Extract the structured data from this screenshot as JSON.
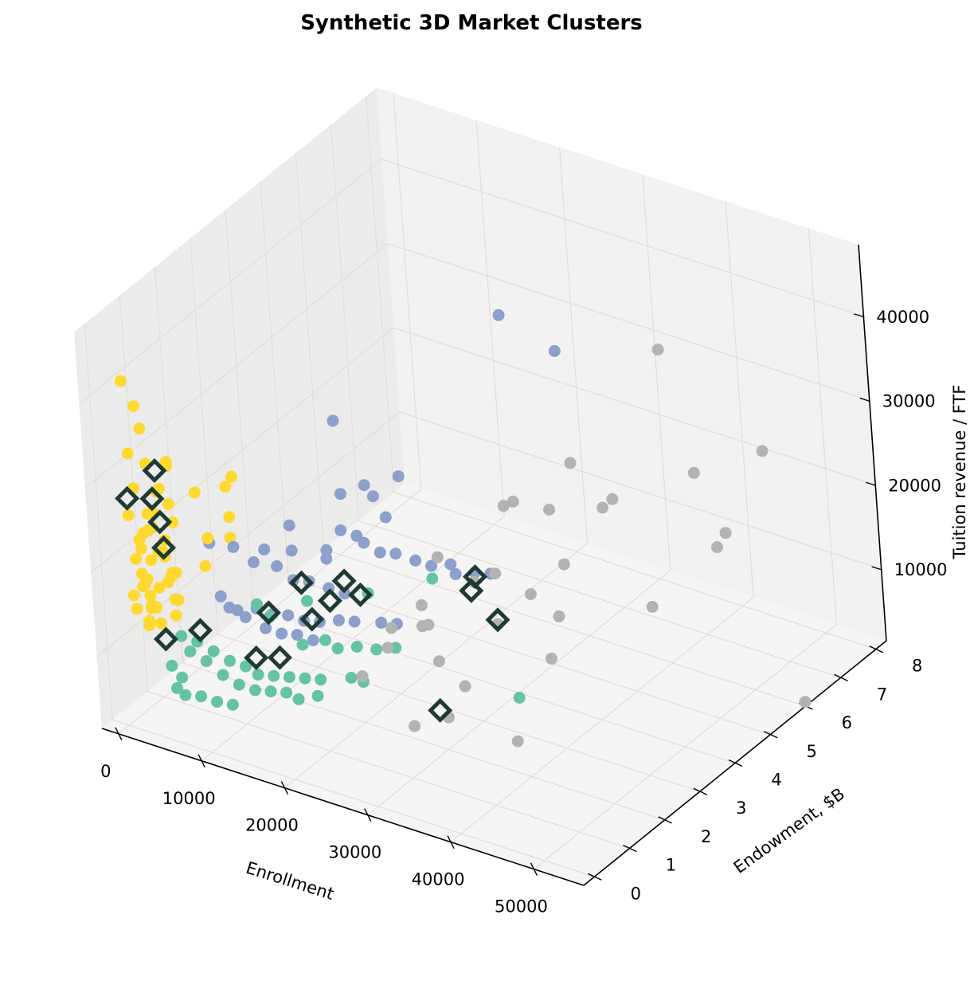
{
  "chart_data": {
    "type": "scatter",
    "projection": "3d",
    "title": "Synthetic 3D Market Clusters",
    "xlabel": "Enrollment",
    "ylabel": "Endowment, $B",
    "zlabel": "Tuition revenue / FTF",
    "xlim": [
      -2000,
      56000
    ],
    "ylim": [
      -0.3,
      8.3
    ],
    "zlim": [
      1500,
      48500
    ],
    "x_ticks": [
      0,
      10000,
      20000,
      30000,
      40000,
      50000
    ],
    "x_tick_labels": [
      "0",
      "10000",
      "20000",
      "30000",
      "40000",
      "50000"
    ],
    "y_ticks": [
      0,
      1,
      2,
      3,
      4,
      5,
      6,
      7,
      8
    ],
    "y_tick_labels": [
      "0",
      "1",
      "2",
      "3",
      "4",
      "5",
      "6",
      "7",
      "8"
    ],
    "z_ticks": [
      10000,
      20000,
      30000,
      40000
    ],
    "z_tick_labels": [
      "10000",
      "20000",
      "30000",
      "40000"
    ],
    "grid": true,
    "legend": "none",
    "colors": {
      "cluster_yellow": "#ffd92f",
      "cluster_blue": "#8da0cb",
      "cluster_green": "#66c2a5",
      "cluster_gray": "#b3b3b3",
      "marker_edge": "#1f3a33",
      "pane_back": "#f2f2f2",
      "pane_side": "#ebebeb",
      "pane_floor": "#f5f5f5",
      "grid": "#e4ddd2"
    },
    "series": [
      {
        "cluster": "yellow",
        "color": "#ffd92f",
        "points": [
          [
            1000,
            0.2,
            42000
          ],
          [
            1000,
            0.5,
            38000
          ],
          [
            2000,
            0.4,
            36000
          ],
          [
            800,
            0.3,
            33000
          ],
          [
            1500,
            0.6,
            31000
          ],
          [
            4500,
            0.5,
            32000
          ],
          [
            3500,
            0.4,
            29000
          ],
          [
            1200,
            0.3,
            29000
          ],
          [
            2500,
            0.7,
            28000
          ],
          [
            4000,
            0.6,
            27000
          ],
          [
            800,
            0.2,
            26000
          ],
          [
            1800,
            0.5,
            25500
          ],
          [
            3200,
            0.3,
            25000
          ],
          [
            1000,
            0.8,
            24500
          ],
          [
            2200,
            0.4,
            24000
          ],
          [
            3000,
            0.9,
            23500
          ],
          [
            1500,
            0.3,
            23000
          ],
          [
            4200,
            0.2,
            22800
          ],
          [
            700,
            0.6,
            22500
          ],
          [
            2800,
            0.7,
            22000
          ],
          [
            1200,
            0.4,
            21500
          ],
          [
            3600,
            0.5,
            21000
          ],
          [
            900,
            0.3,
            20500
          ],
          [
            2000,
            0.8,
            20000
          ],
          [
            4800,
            0.4,
            19800
          ],
          [
            1400,
            0.6,
            19500
          ],
          [
            2600,
            0.2,
            19000
          ],
          [
            3900,
            0.7,
            18500
          ],
          [
            600,
            0.5,
            18000
          ],
          [
            1800,
            0.3,
            17800
          ],
          [
            3300,
            0.6,
            17500
          ],
          [
            1100,
            0.4,
            17000
          ],
          [
            2300,
            0.9,
            16800
          ],
          [
            800,
            0.2,
            16500
          ],
          [
            4500,
            0.5,
            16200
          ],
          [
            1700,
            0.7,
            16000
          ],
          [
            2900,
            0.3,
            15500
          ],
          [
            1000,
            0.6,
            15200
          ],
          [
            2000,
            0.4,
            15000
          ],
          [
            3500,
            0.8,
            14800
          ],
          [
            600,
            0.3,
            14500
          ],
          [
            1500,
            0.5,
            14200
          ],
          [
            2500,
            0.2,
            14000
          ],
          [
            4000,
            0.6,
            13800
          ],
          [
            1200,
            0.7,
            13500
          ],
          [
            3000,
            0.4,
            13200
          ],
          [
            2000,
            0.3,
            13000
          ],
          [
            5500,
            1.0,
            27500
          ],
          [
            6500,
            1.8,
            27000
          ],
          [
            7500,
            1.4,
            27500
          ],
          [
            6800,
            1.6,
            23000
          ],
          [
            5800,
            1.2,
            21500
          ],
          [
            6200,
            1.0,
            19000
          ],
          [
            7200,
            1.5,
            21000
          ],
          [
            4500,
            0.5,
            32500
          ]
        ]
      },
      {
        "cluster": "blue",
        "color": "#8da0cb",
        "points": [
          [
            14000,
            3.0,
            32000
          ],
          [
            17000,
            7.0,
            32000
          ],
          [
            15000,
            3.5,
            23000
          ],
          [
            16000,
            3.5,
            22000
          ],
          [
            17000,
            4.0,
            23000
          ],
          [
            19000,
            8.0,
            25000
          ],
          [
            12000,
            3.5,
            21000
          ],
          [
            14000,
            3.0,
            19000
          ],
          [
            15000,
            3.2,
            18000
          ],
          [
            16000,
            3.8,
            18500
          ],
          [
            10000,
            2.5,
            20000
          ],
          [
            11000,
            2.3,
            18000
          ],
          [
            13000,
            2.8,
            17000
          ],
          [
            9000,
            2.0,
            18500
          ],
          [
            12000,
            3.0,
            15000
          ],
          [
            14000,
            3.6,
            15500
          ],
          [
            15000,
            3.8,
            14000
          ],
          [
            16000,
            4.0,
            13500
          ],
          [
            7500,
            1.5,
            20000
          ],
          [
            8500,
            1.8,
            17500
          ],
          [
            9500,
            2.2,
            16000
          ],
          [
            10500,
            2.4,
            14000
          ],
          [
            11500,
            2.6,
            13500
          ],
          [
            12500,
            2.9,
            12000
          ],
          [
            13500,
            3.1,
            11000
          ],
          [
            17000,
            4.3,
            12000
          ],
          [
            18000,
            4.5,
            11000
          ],
          [
            19000,
            4.8,
            10500
          ],
          [
            20000,
            4.7,
            10000
          ],
          [
            21000,
            5.0,
            9500
          ],
          [
            22000,
            5.2,
            9000
          ],
          [
            7000,
            1.6,
            12000
          ],
          [
            8000,
            1.9,
            11500
          ],
          [
            9000,
            2.1,
            10500
          ],
          [
            10000,
            2.3,
            10000
          ],
          [
            11000,
            2.5,
            9000
          ],
          [
            12000,
            2.7,
            8500
          ],
          [
            13000,
            3.0,
            8000
          ],
          [
            14000,
            3.2,
            7500
          ],
          [
            6000,
            1.4,
            14000
          ],
          [
            6500,
            1.5,
            12500
          ],
          [
            7500,
            1.7,
            11000
          ],
          [
            8500,
            2.0,
            9000
          ],
          [
            9500,
            2.2,
            8000
          ],
          [
            10500,
            2.4,
            7500
          ],
          [
            11500,
            2.6,
            6500
          ],
          [
            15000,
            3.7,
            6000
          ],
          [
            16000,
            3.9,
            5500
          ],
          [
            5500,
            1.3,
            20500
          ]
        ]
      },
      {
        "cluster": "green",
        "color": "#66c2a5",
        "points": [
          [
            4000,
            0.7,
            11000
          ],
          [
            5000,
            0.9,
            10000
          ],
          [
            4500,
            0.8,
            9000
          ],
          [
            6000,
            1.1,
            8500
          ],
          [
            3500,
            0.5,
            8000
          ],
          [
            5500,
            1.0,
            7500
          ],
          [
            4200,
            0.6,
            6500
          ],
          [
            7000,
            1.3,
            7000
          ],
          [
            8000,
            1.5,
            6000
          ],
          [
            6500,
            1.2,
            5500
          ],
          [
            9000,
            1.6,
            5000
          ],
          [
            10000,
            1.8,
            4500
          ],
          [
            11000,
            2.0,
            4000
          ],
          [
            12000,
            2.2,
            3500
          ],
          [
            13000,
            2.4,
            3000
          ],
          [
            7500,
            1.4,
            4000
          ],
          [
            8500,
            1.6,
            3000
          ],
          [
            9500,
            1.8,
            2500
          ],
          [
            10500,
            2.0,
            2000
          ],
          [
            5000,
            0.9,
            3500
          ],
          [
            6000,
            1.1,
            2500
          ],
          [
            7000,
            1.3,
            1800
          ],
          [
            14000,
            2.7,
            6000
          ],
          [
            15000,
            3.0,
            5500
          ],
          [
            12000,
            2.2,
            7500
          ],
          [
            13000,
            2.6,
            7000
          ],
          [
            16000,
            3.3,
            4500
          ],
          [
            17000,
            3.6,
            4000
          ],
          [
            11500,
            2.1,
            1200
          ],
          [
            12500,
            2.4,
            900
          ],
          [
            14500,
            2.9,
            2000
          ],
          [
            15500,
            3.0,
            1500
          ],
          [
            4000,
            0.7,
            4000
          ],
          [
            3500,
            0.6,
            5000
          ],
          [
            30000,
            4.0,
            900
          ],
          [
            12000,
            2.4,
            12000
          ],
          [
            10000,
            1.8,
            11500
          ],
          [
            15000,
            3.4,
            10500
          ],
          [
            18000,
            4.5,
            9500
          ],
          [
            9000,
            1.7,
            13000
          ]
        ]
      },
      {
        "cluster": "gray",
        "color": "#b3b3b3",
        "points": [
          [
            40000,
            6.2,
            38000
          ],
          [
            36000,
            4.5,
            29000
          ],
          [
            32000,
            3.5,
            26000
          ],
          [
            28000,
            2.5,
            22000
          ],
          [
            30000,
            4.2,
            23500
          ],
          [
            33000,
            4.5,
            22500
          ],
          [
            35000,
            5.5,
            20000
          ],
          [
            34000,
            6.0,
            19000
          ],
          [
            42000,
            6.5,
            23000
          ],
          [
            46000,
            7.5,
            23500
          ],
          [
            30000,
            3.0,
            18000
          ],
          [
            27000,
            2.2,
            17000
          ],
          [
            29000,
            3.8,
            16000
          ],
          [
            24000,
            2.0,
            14000
          ],
          [
            26000,
            2.4,
            13500
          ],
          [
            33000,
            4.8,
            15000
          ],
          [
            44000,
            6.8,
            15500
          ],
          [
            41000,
            7.2,
            11500
          ],
          [
            30000,
            4.5,
            11500
          ],
          [
            24000,
            3.0,
            11000
          ],
          [
            22000,
            2.3,
            10000
          ],
          [
            28000,
            4.0,
            9000
          ],
          [
            31000,
            5.0,
            7500
          ],
          [
            38000,
            6.0,
            7500
          ],
          [
            25000,
            3.0,
            7000
          ],
          [
            20000,
            2.0,
            7000
          ],
          [
            28000,
            3.0,
            5000
          ],
          [
            32000,
            4.5,
            4500
          ],
          [
            26000,
            2.0,
            3000
          ],
          [
            28000,
            2.5,
            3000
          ],
          [
            56000,
            6.0,
            2000
          ],
          [
            34000,
            3.0,
            400
          ]
        ]
      }
    ],
    "highlighted": [
      [
        3500,
        0.4,
        31500
      ],
      [
        800,
        0.2,
        28000
      ],
      [
        2500,
        0.5,
        27500
      ],
      [
        2800,
        0.6,
        24500
      ],
      [
        3500,
        0.5,
        22000
      ],
      [
        11000,
        2.5,
        13500
      ],
      [
        14000,
        3.0,
        13000
      ],
      [
        9000,
        2.0,
        11000
      ],
      [
        3000,
        0.5,
        11000
      ],
      [
        5000,
        1.0,
        11000
      ],
      [
        13000,
        2.8,
        11000
      ],
      [
        14500,
        3.3,
        10500
      ],
      [
        12000,
        2.5,
        9500
      ],
      [
        21000,
        5.0,
        9000
      ],
      [
        8000,
        1.8,
        6000
      ],
      [
        10000,
        2.0,
        6000
      ],
      [
        25000,
        4.0,
        12000
      ],
      [
        28000,
        4.0,
        9500
      ],
      [
        27000,
        2.5,
        3500
      ]
    ]
  }
}
